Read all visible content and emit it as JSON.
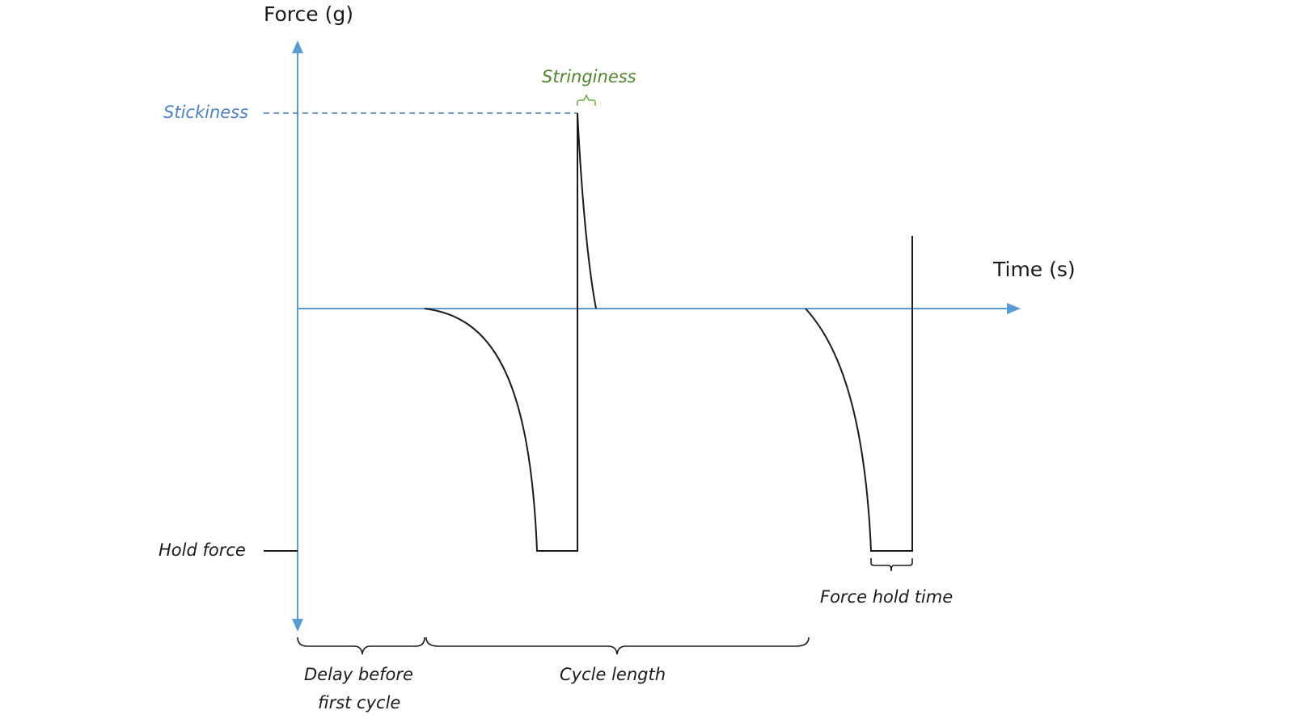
{
  "axes": {
    "y_title": "Force (g)",
    "x_title": "Time (s)"
  },
  "labels": {
    "stickiness": "Stickiness",
    "stringiness": "Stringiness",
    "hold_force": "Hold force",
    "force_hold_time": "Force hold time",
    "delay_line1": "Delay before",
    "delay_line2": "first cycle",
    "cycle_length": "Cycle length"
  },
  "colors": {
    "axis": "#5b9bd5",
    "stickiness": "#4f81bd",
    "stringiness": "#548235",
    "curve": "#1a1a1a"
  }
}
